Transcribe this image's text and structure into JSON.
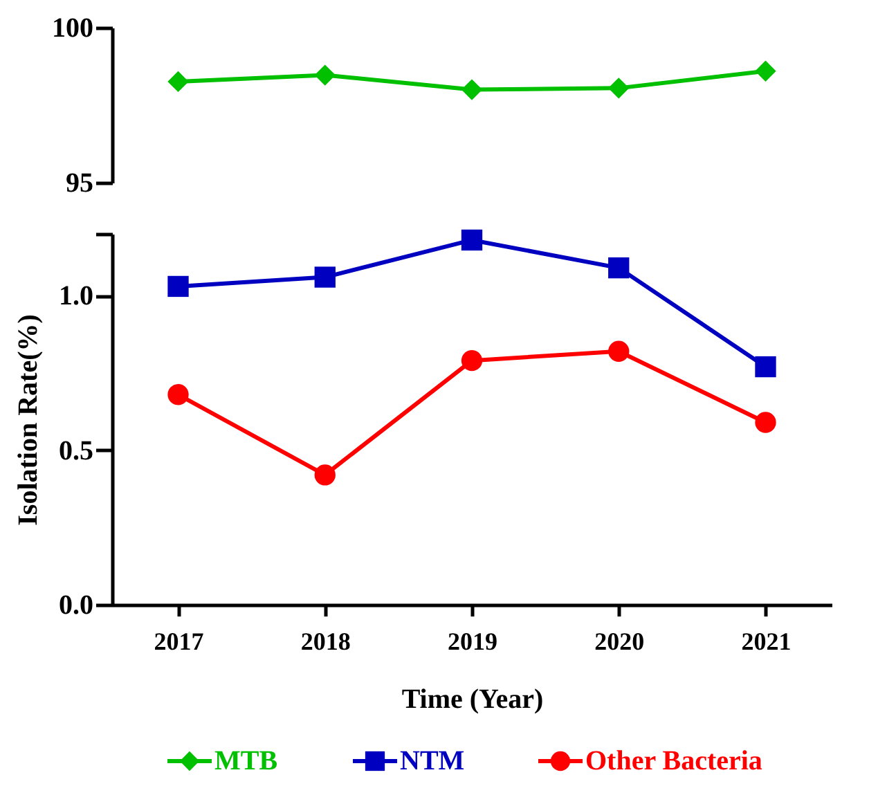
{
  "chart_data": [
    {
      "type": "line",
      "categories": [
        "2017",
        "2018",
        "2019",
        "2020",
        "2021"
      ],
      "ylim": [
        95,
        100
      ],
      "yticks": [
        95,
        100
      ],
      "tick_labels": "y",
      "legend": "bottom",
      "grid": false,
      "series": [
        {
          "name": "MTB",
          "color": "#00c000",
          "marker": "diamond",
          "values": [
            98.26,
            98.47,
            98.0,
            98.05,
            98.6
          ]
        }
      ]
    },
    {
      "type": "line",
      "categories": [
        "2017",
        "2018",
        "2019",
        "2020",
        "2021"
      ],
      "xlabel": "Time (Year)",
      "ylabel": "Isolation Rate(%)",
      "ylim": [
        0,
        1.2
      ],
      "yticks": [
        {
          "value": 0,
          "label": "0.0"
        },
        {
          "value": 0.5,
          "label": "0.5"
        },
        {
          "value": 1.0,
          "label": "1.0"
        },
        {
          "value": 1.2,
          "label": null
        }
      ],
      "legend": "bottom",
      "grid": false,
      "series": [
        {
          "name": "NTM",
          "color": "#0000c0",
          "marker": "square",
          "values": [
            1.03,
            1.06,
            1.18,
            1.09,
            0.77
          ]
        },
        {
          "name": "Other Bacteria",
          "color": "#ff0000",
          "marker": "circle",
          "values": [
            0.68,
            0.42,
            0.79,
            0.82,
            0.59
          ]
        }
      ]
    }
  ]
}
